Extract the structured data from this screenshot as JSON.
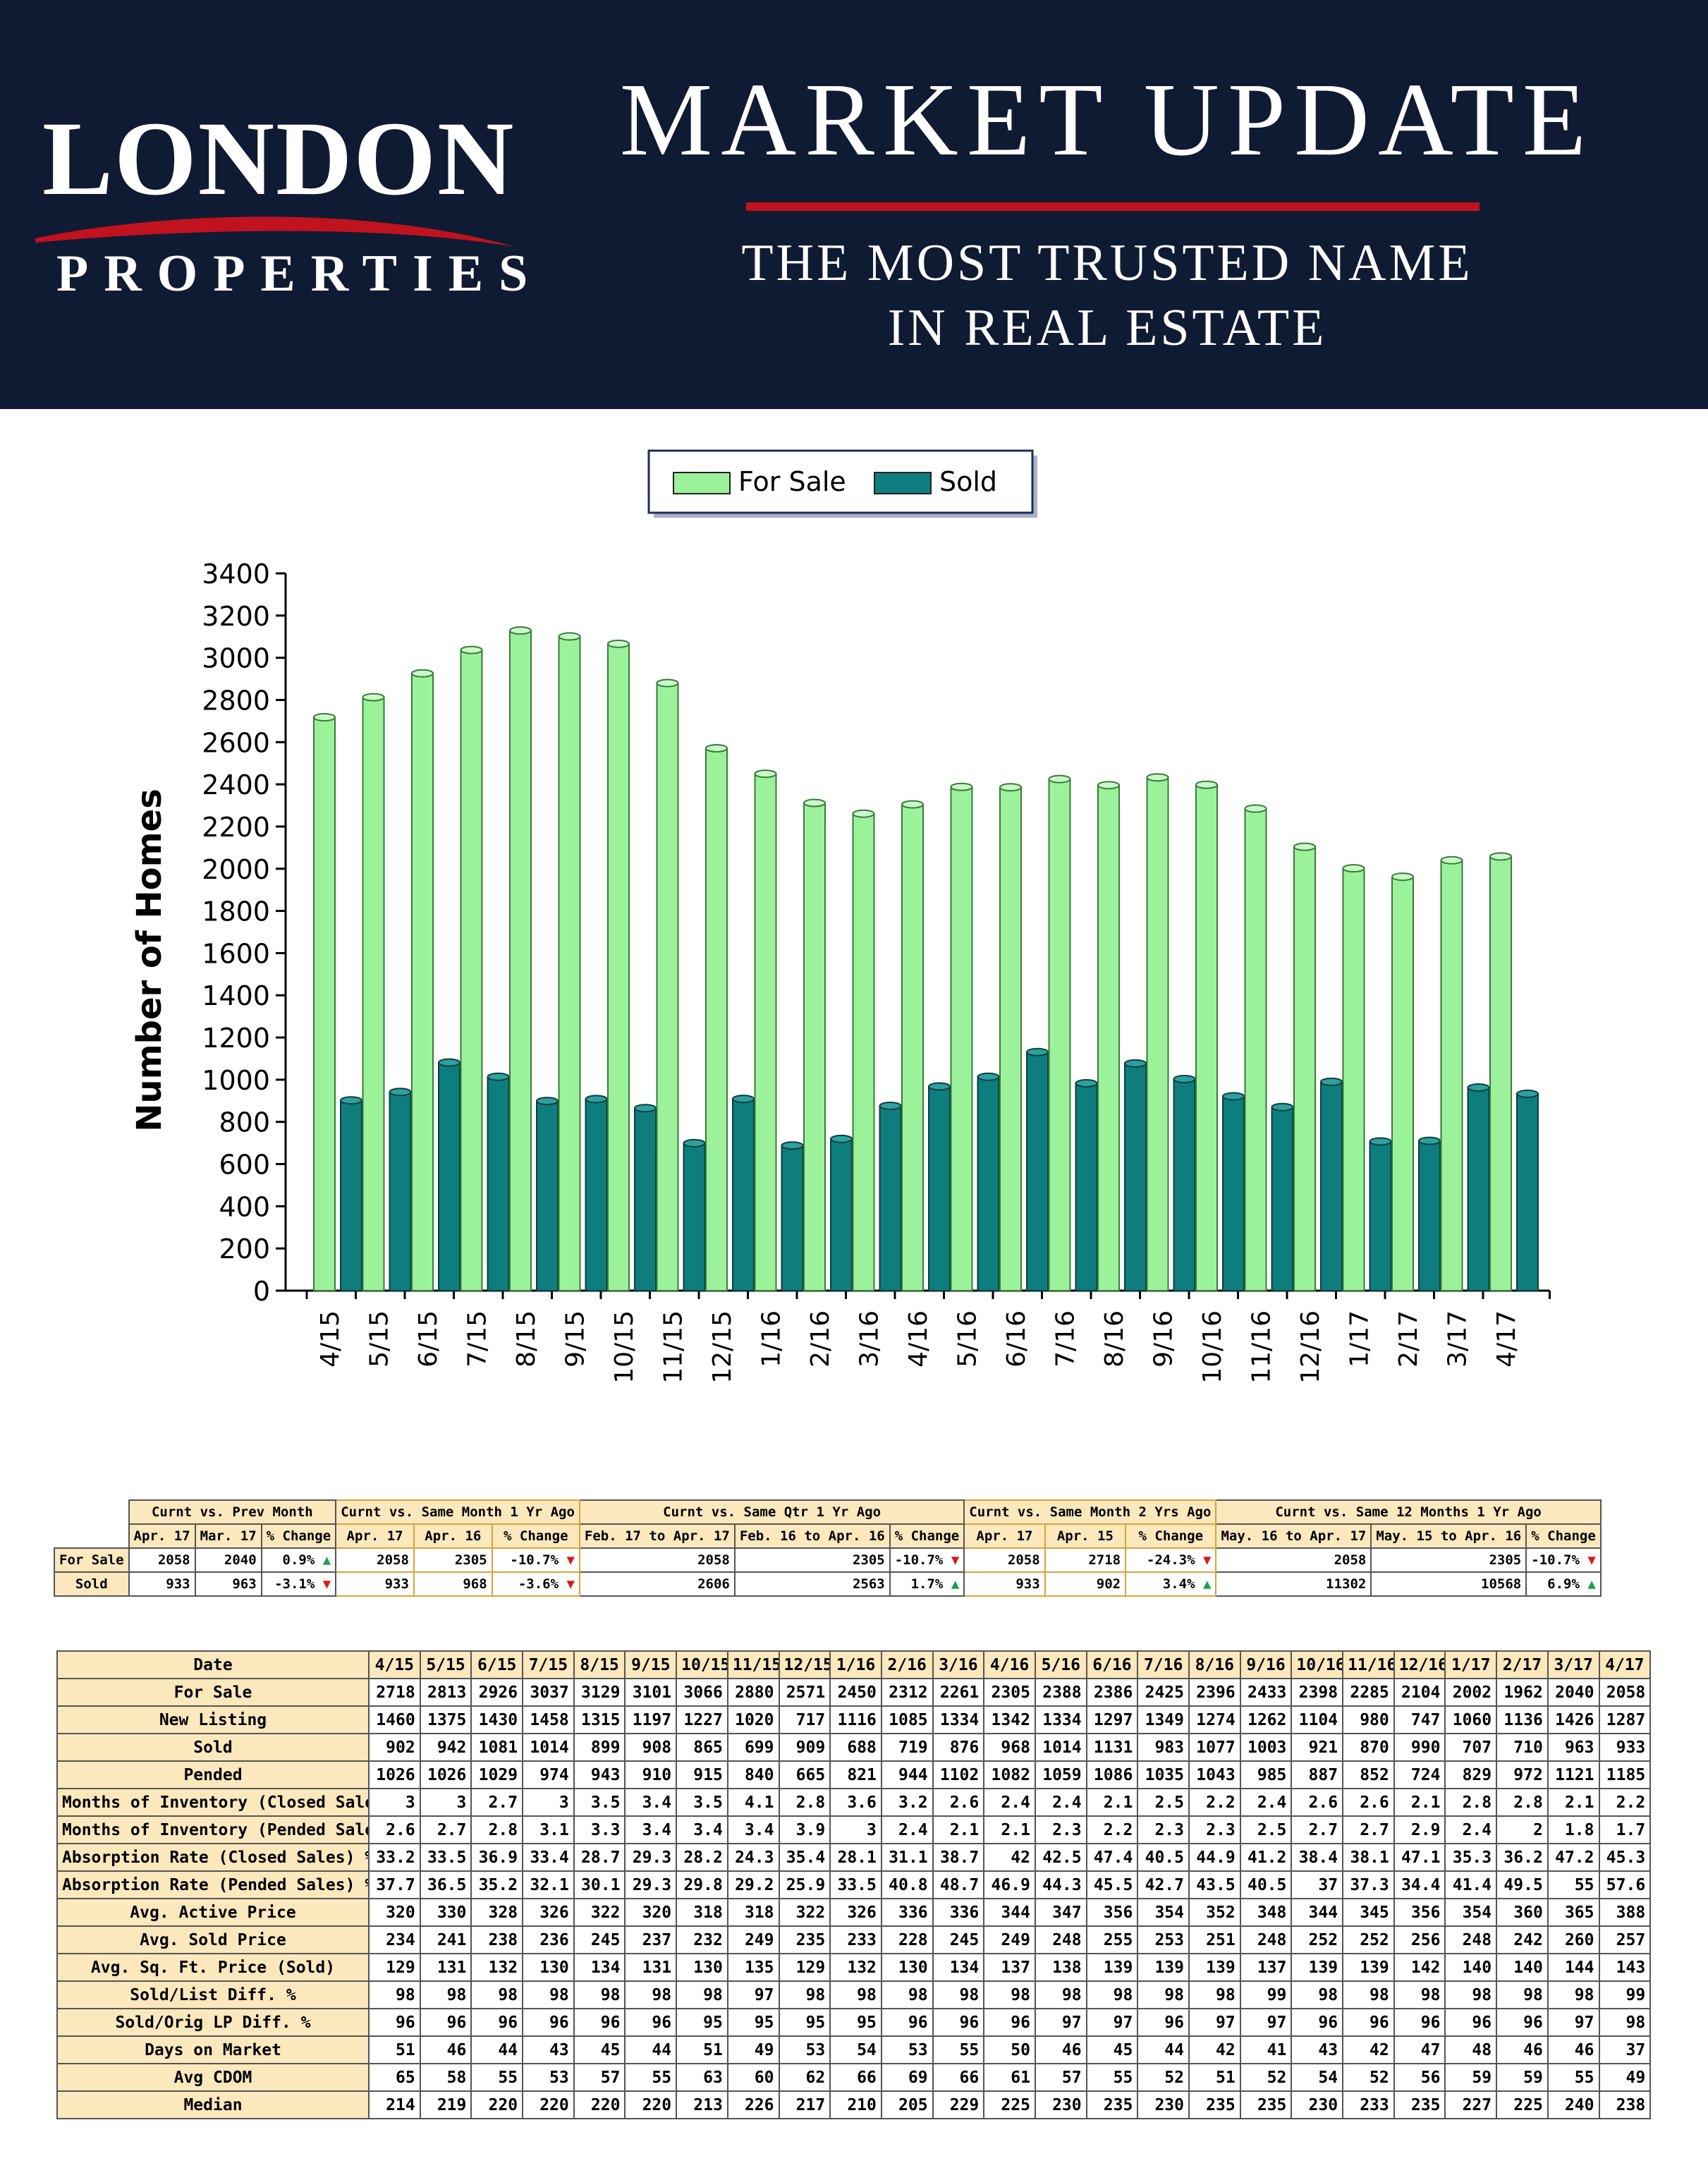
{
  "header": {
    "logo_top": "LONDON",
    "logo_bottom": "PROPERTIES",
    "title": "MARKET UPDATE",
    "tagline_line1": "THE MOST TRUSTED NAME",
    "tagline_line2": "IN REAL ESTATE",
    "background_color": "#0f1b33",
    "accent_color": "#c1121f"
  },
  "chart_data": {
    "type": "bar",
    "ylabel": "Number of Homes",
    "ylim": [
      0,
      3400
    ],
    "yticks": [
      0,
      200,
      400,
      600,
      800,
      1000,
      1200,
      1400,
      1600,
      1800,
      2000,
      2200,
      2400,
      2600,
      2800,
      3000,
      3200,
      3400
    ],
    "categories": [
      "4/15",
      "5/15",
      "6/15",
      "7/15",
      "8/15",
      "9/15",
      "10/15",
      "11/15",
      "12/15",
      "1/16",
      "2/16",
      "3/16",
      "4/16",
      "5/16",
      "6/16",
      "7/16",
      "8/16",
      "9/16",
      "10/16",
      "11/16",
      "12/16",
      "1/17",
      "2/17",
      "3/17",
      "4/17"
    ],
    "series": [
      {
        "name": "For Sale",
        "color": "#9bf29b",
        "values": [
          2718,
          2813,
          2926,
          3037,
          3129,
          3101,
          3066,
          2880,
          2571,
          2450,
          2312,
          2261,
          2305,
          2388,
          2386,
          2425,
          2396,
          2433,
          2398,
          2285,
          2104,
          2002,
          1962,
          2040,
          2058
        ]
      },
      {
        "name": "Sold",
        "color": "#0e7d7d",
        "values": [
          902,
          942,
          1081,
          1014,
          899,
          908,
          865,
          699,
          909,
          688,
          719,
          876,
          968,
          1014,
          1131,
          983,
          1077,
          1003,
          921,
          870,
          990,
          707,
          710,
          963,
          933
        ]
      }
    ],
    "legend_position": "top-center",
    "grid": false
  },
  "summary_table": {
    "groups": [
      "Curnt vs. Prev Month",
      "Curnt vs. Same Month 1 Yr Ago",
      "Curnt vs. Same Qtr 1 Yr Ago",
      "Curnt vs. Same Month 2 Yrs Ago",
      "Curnt vs. Same 12 Months 1 Yr Ago"
    ],
    "subheaders": [
      "Apr. 17",
      "Mar. 17",
      "% Change",
      "Apr. 17",
      "Apr. 16",
      "% Change",
      "Feb. 17 to Apr. 17",
      "Feb. 16 to Apr. 16",
      "% Change",
      "Apr. 17",
      "Apr. 15",
      "% Change",
      "May. 16 to Apr. 17",
      "May. 15 to Apr. 16",
      "% Change"
    ],
    "rows": [
      {
        "label": "For Sale",
        "cells": [
          "2058",
          "2040",
          "0.9%",
          "2058",
          "2305",
          "-10.7%",
          "2058",
          "2305",
          "-10.7%",
          "2058",
          "2718",
          "-24.3%",
          "2058",
          "2305",
          "-10.7%"
        ],
        "arrows": [
          "up",
          "down",
          "down",
          "down",
          "down"
        ]
      },
      {
        "label": "Sold",
        "cells": [
          "933",
          "963",
          "-3.1%",
          "933",
          "968",
          "-3.6%",
          "2606",
          "2563",
          "1.7%",
          "933",
          "902",
          "3.4%",
          "11302",
          "10568",
          "6.9%"
        ],
        "arrows": [
          "down",
          "down",
          "up",
          "up",
          "up"
        ]
      }
    ]
  },
  "detail_table": {
    "header_label": "Date",
    "columns": [
      "4/15",
      "5/15",
      "6/15",
      "7/15",
      "8/15",
      "9/15",
      "10/15",
      "11/15",
      "12/15",
      "1/16",
      "2/16",
      "3/16",
      "4/16",
      "5/16",
      "6/16",
      "7/16",
      "8/16",
      "9/16",
      "10/16",
      "11/16",
      "12/16",
      "1/17",
      "2/17",
      "3/17",
      "4/17"
    ],
    "rows": [
      {
        "label": "For Sale",
        "values": [
          "2718",
          "2813",
          "2926",
          "3037",
          "3129",
          "3101",
          "3066",
          "2880",
          "2571",
          "2450",
          "2312",
          "2261",
          "2305",
          "2388",
          "2386",
          "2425",
          "2396",
          "2433",
          "2398",
          "2285",
          "2104",
          "2002",
          "1962",
          "2040",
          "2058"
        ]
      },
      {
        "label": "New Listing",
        "values": [
          "1460",
          "1375",
          "1430",
          "1458",
          "1315",
          "1197",
          "1227",
          "1020",
          "717",
          "1116",
          "1085",
          "1334",
          "1342",
          "1334",
          "1297",
          "1349",
          "1274",
          "1262",
          "1104",
          "980",
          "747",
          "1060",
          "1136",
          "1426",
          "1287"
        ]
      },
      {
        "label": "Sold",
        "values": [
          "902",
          "942",
          "1081",
          "1014",
          "899",
          "908",
          "865",
          "699",
          "909",
          "688",
          "719",
          "876",
          "968",
          "1014",
          "1131",
          "983",
          "1077",
          "1003",
          "921",
          "870",
          "990",
          "707",
          "710",
          "963",
          "933"
        ]
      },
      {
        "label": "Pended",
        "values": [
          "1026",
          "1026",
          "1029",
          "974",
          "943",
          "910",
          "915",
          "840",
          "665",
          "821",
          "944",
          "1102",
          "1082",
          "1059",
          "1086",
          "1035",
          "1043",
          "985",
          "887",
          "852",
          "724",
          "829",
          "972",
          "1121",
          "1185"
        ]
      },
      {
        "label": "Months of Inventory (Closed Sales)",
        "values": [
          "3",
          "3",
          "2.7",
          "3",
          "3.5",
          "3.4",
          "3.5",
          "4.1",
          "2.8",
          "3.6",
          "3.2",
          "2.6",
          "2.4",
          "2.4",
          "2.1",
          "2.5",
          "2.2",
          "2.4",
          "2.6",
          "2.6",
          "2.1",
          "2.8",
          "2.8",
          "2.1",
          "2.2"
        ]
      },
      {
        "label": "Months of Inventory (Pended Sales)",
        "values": [
          "2.6",
          "2.7",
          "2.8",
          "3.1",
          "3.3",
          "3.4",
          "3.4",
          "3.4",
          "3.9",
          "3",
          "2.4",
          "2.1",
          "2.1",
          "2.3",
          "2.2",
          "2.3",
          "2.3",
          "2.5",
          "2.7",
          "2.7",
          "2.9",
          "2.4",
          "2",
          "1.8",
          "1.7"
        ]
      },
      {
        "label": "Absorption Rate (Closed Sales) %",
        "values": [
          "33.2",
          "33.5",
          "36.9",
          "33.4",
          "28.7",
          "29.3",
          "28.2",
          "24.3",
          "35.4",
          "28.1",
          "31.1",
          "38.7",
          "42",
          "42.5",
          "47.4",
          "40.5",
          "44.9",
          "41.2",
          "38.4",
          "38.1",
          "47.1",
          "35.3",
          "36.2",
          "47.2",
          "45.3"
        ]
      },
      {
        "label": "Absorption Rate (Pended Sales) %",
        "values": [
          "37.7",
          "36.5",
          "35.2",
          "32.1",
          "30.1",
          "29.3",
          "29.8",
          "29.2",
          "25.9",
          "33.5",
          "40.8",
          "48.7",
          "46.9",
          "44.3",
          "45.5",
          "42.7",
          "43.5",
          "40.5",
          "37",
          "37.3",
          "34.4",
          "41.4",
          "49.5",
          "55",
          "57.6"
        ]
      },
      {
        "label": "Avg. Active Price",
        "values": [
          "320",
          "330",
          "328",
          "326",
          "322",
          "320",
          "318",
          "318",
          "322",
          "326",
          "336",
          "336",
          "344",
          "347",
          "356",
          "354",
          "352",
          "348",
          "344",
          "345",
          "356",
          "354",
          "360",
          "365",
          "388"
        ]
      },
      {
        "label": "Avg. Sold Price",
        "values": [
          "234",
          "241",
          "238",
          "236",
          "245",
          "237",
          "232",
          "249",
          "235",
          "233",
          "228",
          "245",
          "249",
          "248",
          "255",
          "253",
          "251",
          "248",
          "252",
          "252",
          "256",
          "248",
          "242",
          "260",
          "257"
        ]
      },
      {
        "label": "Avg. Sq. Ft. Price (Sold)",
        "values": [
          "129",
          "131",
          "132",
          "130",
          "134",
          "131",
          "130",
          "135",
          "129",
          "132",
          "130",
          "134",
          "137",
          "138",
          "139",
          "139",
          "139",
          "137",
          "139",
          "139",
          "142",
          "140",
          "140",
          "144",
          "143"
        ]
      },
      {
        "label": "Sold/List Diff. %",
        "values": [
          "98",
          "98",
          "98",
          "98",
          "98",
          "98",
          "98",
          "97",
          "98",
          "98",
          "98",
          "98",
          "98",
          "98",
          "98",
          "98",
          "98",
          "99",
          "98",
          "98",
          "98",
          "98",
          "98",
          "98",
          "99"
        ]
      },
      {
        "label": "Sold/Orig LP Diff. %",
        "values": [
          "96",
          "96",
          "96",
          "96",
          "96",
          "96",
          "95",
          "95",
          "95",
          "95",
          "96",
          "96",
          "96",
          "97",
          "97",
          "96",
          "97",
          "97",
          "96",
          "96",
          "96",
          "96",
          "96",
          "97",
          "98"
        ]
      },
      {
        "label": "Days on Market",
        "values": [
          "51",
          "46",
          "44",
          "43",
          "45",
          "44",
          "51",
          "49",
          "53",
          "54",
          "53",
          "55",
          "50",
          "46",
          "45",
          "44",
          "42",
          "41",
          "43",
          "42",
          "47",
          "48",
          "46",
          "46",
          "37"
        ]
      },
      {
        "label": "Avg CDOM",
        "values": [
          "65",
          "58",
          "55",
          "53",
          "57",
          "55",
          "63",
          "60",
          "62",
          "66",
          "69",
          "66",
          "61",
          "57",
          "55",
          "52",
          "51",
          "52",
          "54",
          "52",
          "56",
          "59",
          "59",
          "55",
          "49"
        ]
      },
      {
        "label": "Median",
        "values": [
          "214",
          "219",
          "220",
          "220",
          "220",
          "220",
          "213",
          "226",
          "217",
          "210",
          "205",
          "229",
          "225",
          "230",
          "235",
          "230",
          "235",
          "235",
          "230",
          "233",
          "235",
          "227",
          "225",
          "240",
          "238"
        ]
      }
    ]
  }
}
